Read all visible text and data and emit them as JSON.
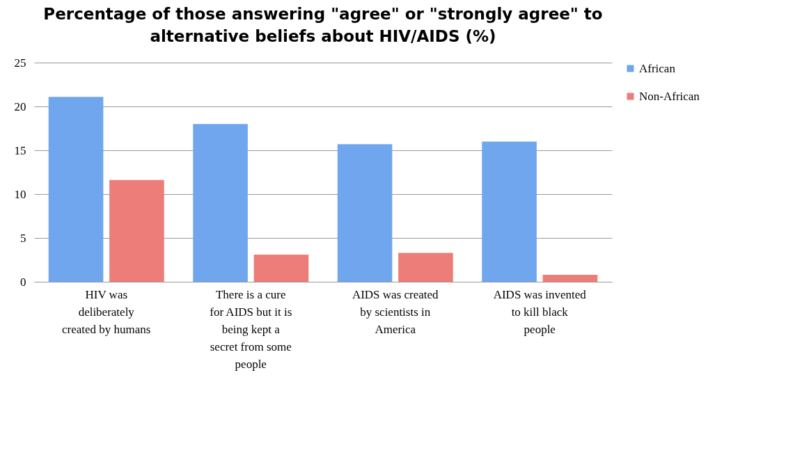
{
  "chart_data": {
    "type": "bar",
    "title": "Percentage of those answering \"agree\" or \"strongly agree\" to alternative beliefs about HIV/AIDS (%)",
    "categories": [
      "HIV was deliberately created by humans",
      "There is a cure for AIDS but it is being kept a secret from some people",
      "AIDS was created by scientists in America",
      "AIDS was invented to kill black people"
    ],
    "series": [
      {
        "name": "African",
        "color": "#6fa6ee",
        "values": [
          21.1,
          18.0,
          15.7,
          16.0
        ]
      },
      {
        "name": "Non-African",
        "color": "#ec7d78",
        "values": [
          11.6,
          3.1,
          3.3,
          0.8
        ]
      }
    ],
    "ylim": [
      0,
      25
    ],
    "yticks": [
      0,
      5,
      10,
      15,
      20,
      25
    ],
    "grid": "y",
    "legend": "right"
  }
}
